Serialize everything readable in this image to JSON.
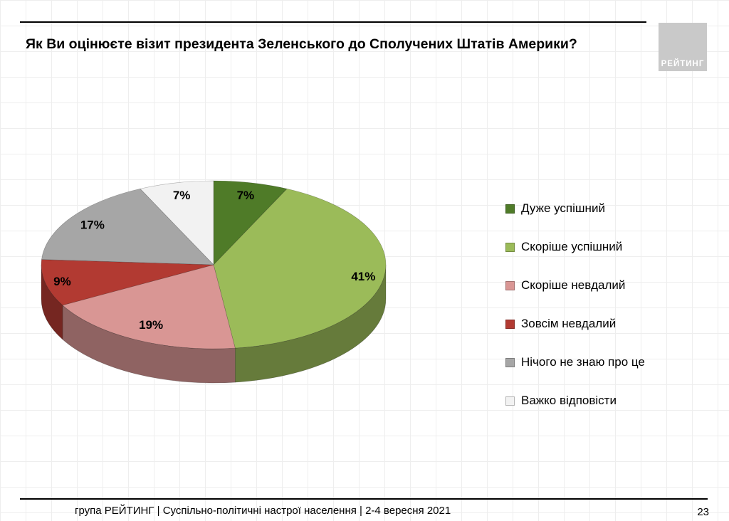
{
  "slide": {
    "title": "Як Ви оцінюєте візит президента Зеленського до Сполучених Штатів Америки?",
    "logo_text": "РЕЙТИНГ",
    "footer_text": "група РЕЙТИНГ | Суспільно-політичні настрої населення  | 2-4 вересня 2021",
    "page_number": "23"
  },
  "chart_data": {
    "type": "pie",
    "style": "3d",
    "title": "Як Ви оцінюєте візит президента Зеленського до Сполучених Штатів Америки?",
    "start_angle_deg": 0,
    "direction": "clockwise",
    "categories": [
      "Дуже успішний",
      "Скоріше успішний",
      "Скоріше невдалий",
      "Зовсім невдалий",
      "Нічого не знаю про це",
      "Важко відповісти"
    ],
    "values": [
      7,
      41,
      19,
      9,
      17,
      7
    ],
    "labels": [
      "7%",
      "41%",
      "19%",
      "9%",
      "17%",
      "7%"
    ],
    "colors": [
      "#4F7B28",
      "#9BBB59",
      "#D99694",
      "#B23A32",
      "#A6A6A6",
      "#F2F2F2"
    ],
    "legend_position": "right",
    "label_radius": [
      0.85,
      0.88,
      0.8,
      0.9,
      0.85,
      0.85
    ]
  }
}
